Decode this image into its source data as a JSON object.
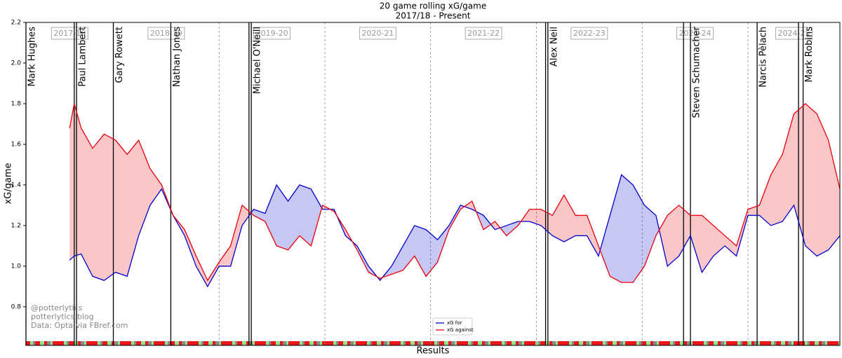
{
  "chart_data": {
    "type": "line",
    "title": "20 game rolling xG/game",
    "subtitle": "2017/18 - Present",
    "y_label": "xG/game",
    "x_label": "Results",
    "xlim": [
      0,
      354
    ],
    "ylim": [
      0.61,
      2.2
    ],
    "yticks": [
      0.8,
      {
        "value": 1,
        "label": "1.0"
      },
      1.2,
      1.4,
      1.6,
      1.8,
      {
        "value": 2,
        "label": "2.0"
      },
      2.2
    ],
    "x": [
      19,
      21,
      24,
      29,
      34,
      39,
      44,
      49,
      54,
      59,
      64,
      69,
      74,
      79,
      84,
      89,
      94,
      99,
      104,
      109,
      114,
      119,
      124,
      129,
      134,
      139,
      144,
      149,
      154,
      159,
      164,
      169,
      174,
      179,
      184,
      189,
      194,
      199,
      204,
      209,
      214,
      219,
      224,
      229,
      234,
      239,
      244,
      249,
      254,
      259,
      264,
      269,
      274,
      279,
      284,
      289,
      294,
      299,
      304,
      309,
      314,
      319,
      324,
      329,
      334,
      339,
      344,
      349,
      354
    ],
    "series": [
      {
        "name": "xG for",
        "color": "#0000cc",
        "values": [
          1.03,
          1.05,
          1.06,
          0.95,
          0.93,
          0.97,
          0.95,
          1.15,
          1.3,
          1.38,
          1.25,
          1.15,
          1.0,
          0.9,
          1.0,
          1.0,
          1.2,
          1.28,
          1.26,
          1.4,
          1.32,
          1.4,
          1.38,
          1.28,
          1.28,
          1.15,
          1.1,
          1.0,
          0.93,
          1.0,
          1.1,
          1.2,
          1.18,
          1.13,
          1.2,
          1.3,
          1.28,
          1.25,
          1.18,
          1.2,
          1.22,
          1.22,
          1.2,
          1.15,
          1.12,
          1.15,
          1.15,
          1.05,
          1.25,
          1.45,
          1.4,
          1.3,
          1.25,
          1.0,
          1.05,
          1.15,
          0.97,
          1.05,
          1.1,
          1.05,
          1.25,
          1.25,
          1.2,
          1.22,
          1.3,
          1.1,
          1.05,
          1.08,
          1.15
        ]
      },
      {
        "name": "xG against",
        "color": "#e8000b",
        "values": [
          1.68,
          1.8,
          1.68,
          1.58,
          1.65,
          1.62,
          1.55,
          1.62,
          1.48,
          1.4,
          1.25,
          1.18,
          1.05,
          0.93,
          1.02,
          1.1,
          1.3,
          1.25,
          1.22,
          1.1,
          1.08,
          1.15,
          1.1,
          1.3,
          1.27,
          1.18,
          1.08,
          0.97,
          0.94,
          0.96,
          0.98,
          1.05,
          0.95,
          1.02,
          1.18,
          1.28,
          1.32,
          1.18,
          1.22,
          1.15,
          1.2,
          1.28,
          1.28,
          1.25,
          1.35,
          1.25,
          1.25,
          1.1,
          0.95,
          0.92,
          0.92,
          1.0,
          1.15,
          1.25,
          1.3,
          1.25,
          1.25,
          1.2,
          1.15,
          1.1,
          1.28,
          1.3,
          1.45,
          1.55,
          1.75,
          1.8,
          1.75,
          1.62,
          1.38
        ]
      }
    ],
    "seasons": [
      {
        "label": "2017-18",
        "start": 0,
        "end": 38
      },
      {
        "label": "2018-19",
        "start": 38,
        "end": 84
      },
      {
        "label": "2019-20",
        "start": 84,
        "end": 130
      },
      {
        "label": "2020-21",
        "start": 130,
        "end": 176
      },
      {
        "label": "2021-22",
        "start": 176,
        "end": 222
      },
      {
        "label": "2022-23",
        "start": 222,
        "end": 268
      },
      {
        "label": "2023-24",
        "start": 268,
        "end": 314
      },
      {
        "label": "2024-25",
        "start": 314,
        "end": 354
      }
    ],
    "manager_lines": [
      0,
      21,
      22,
      38,
      63,
      97,
      98,
      226,
      227,
      286,
      289,
      318,
      336,
      338
    ],
    "managers": [
      {
        "name": "Mark Hughes",
        "x": 0
      },
      {
        "name": "Paul Lambert",
        "x": 22
      },
      {
        "name": "Gary Rowett",
        "x": 38
      },
      {
        "name": "Nathan Jones",
        "x": 63
      },
      {
        "name": "Michael O'Neill",
        "x": 98
      },
      {
        "name": "Alex Neil",
        "x": 227
      },
      {
        "name": "Steven Schumacher",
        "x": 289
      },
      {
        "name": "Narcis Pèlach",
        "x": 318
      },
      {
        "name": "Mark Robins",
        "x": 338
      }
    ],
    "watermark": [
      "@potterlytics",
      "potterlytics.blog",
      "Data: Opta via FBref.com"
    ],
    "legend": "lower center"
  }
}
